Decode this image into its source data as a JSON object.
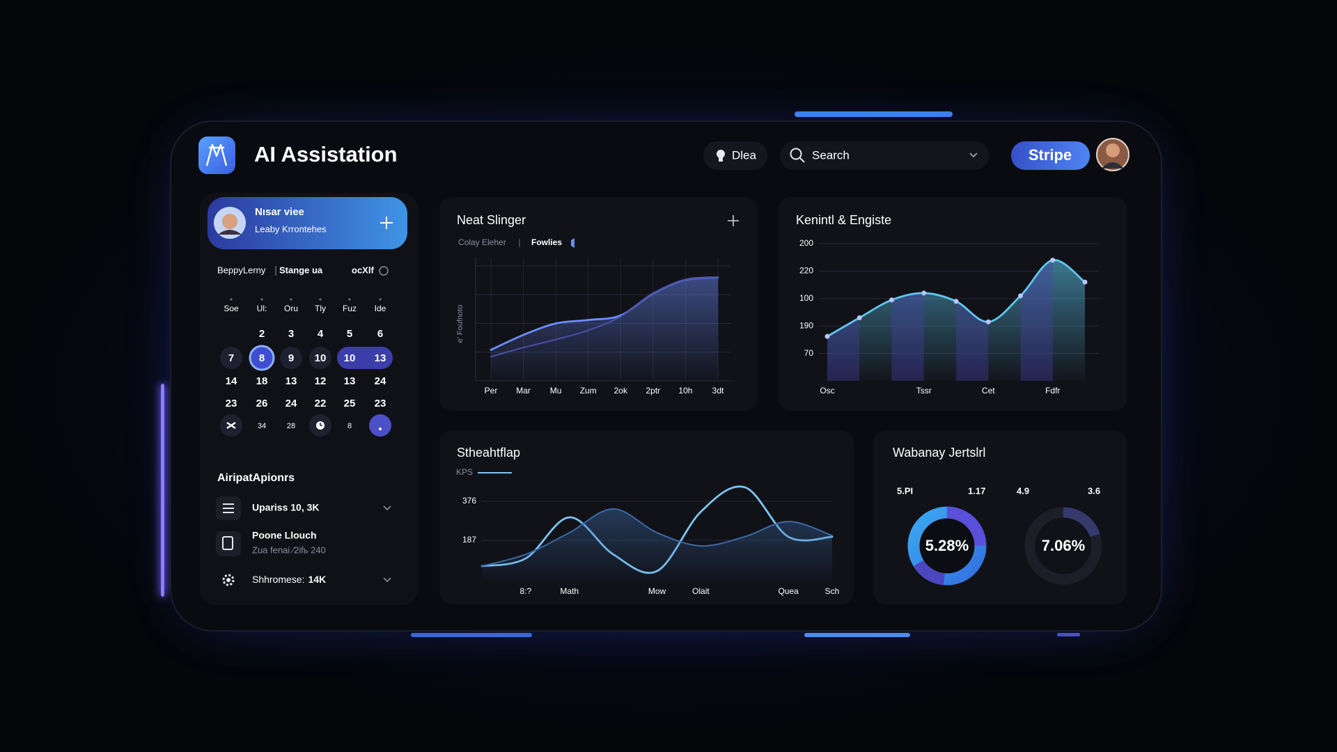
{
  "header": {
    "title": "AI Assistation",
    "chip": "Dlea",
    "search": "Search",
    "button": "Stripe"
  },
  "profile": {
    "name": "Nısar viee",
    "subtitle": "Leaby Krrontehes"
  },
  "calendar": {
    "toolbar": [
      "BeppyLerny",
      "Stange ua",
      "ocXlf"
    ],
    "weekdays": [
      "Soe",
      "Ul:",
      "Oru",
      "Tly",
      "Fuz",
      "Ide"
    ],
    "rows": [
      [
        null,
        2,
        3,
        4,
        5,
        6
      ],
      [
        7,
        8,
        9,
        10,
        10,
        13
      ],
      [
        14,
        18,
        13,
        12,
        13,
        24
      ],
      [
        23,
        26,
        24,
        22,
        25,
        23
      ],
      [
        null,
        34,
        28,
        null,
        8,
        null
      ]
    ]
  },
  "apps": {
    "title": "AiripatApionrs",
    "items": [
      {
        "label": "Upariss 10, 3K"
      },
      {
        "label": "Poone Llouch",
        "sub": "Zua fenai ⁄2ifь 240"
      },
      {
        "label": "Shhromese:",
        "value": "14K"
      }
    ]
  },
  "kpis": {
    "title": "Wabanay Jertslrl",
    "items": [
      {
        "label": "5.PI",
        "delta": "1.17",
        "value": "5.28%"
      },
      {
        "label": "4.9",
        "delta": "3.6",
        "value": "7.06%"
      }
    ]
  },
  "chart_data": [
    {
      "type": "line",
      "title": "Neat Slinger",
      "subtitle": "Colay Eleher",
      "legend": "Fowlies",
      "ylabel": "e' Foufnoto",
      "categories": [
        "Per",
        "Mar",
        "Mu",
        "Zum",
        "2ok",
        "2ptr",
        "10h",
        "3dt"
      ],
      "series": [
        {
          "name": "Fowlies",
          "color": "#6d8dff",
          "fill": true,
          "values": [
            27,
            40,
            50,
            53,
            57,
            76,
            88,
            90
          ]
        },
        {
          "color": "#4a4fa8",
          "values": [
            21,
            29,
            36,
            44,
            56,
            76,
            88,
            90
          ]
        }
      ],
      "ylim": [
        0,
        100
      ],
      "grid": true
    },
    {
      "type": "area",
      "title": "Kenintl & Engiste",
      "categories": [
        "Osc",
        null,
        null,
        "Tssr",
        null,
        "Cet",
        null,
        "Fdfr",
        null
      ],
      "series": [
        {
          "color": "#5fc7f0",
          "values": [
            0.62,
            1.3,
            1.95,
            2.2,
            1.9,
            1.15,
            2.1,
            3.4,
            2.6
          ]
        }
      ],
      "ylim": [
        -1,
        4
      ],
      "yticks": [
        {
          "value": 4,
          "label": "200"
        },
        {
          "value": 3,
          "label": "220"
        },
        {
          "value": 2,
          "label": "100"
        },
        {
          "value": 1,
          "label": "190"
        },
        {
          "value": 0,
          "label": "70"
        }
      ],
      "grid": true
    },
    {
      "type": "line",
      "title": "Stheahtflap",
      "categories": [
        null,
        "8:?",
        "Math",
        null,
        "Mow",
        "Olait",
        null,
        "Quea",
        "Sch"
      ],
      "series": [
        {
          "name": "KPS",
          "color": "#7cc6f5",
          "values": [
            62,
            99,
            298,
            119,
            38,
            325,
            444,
            204,
            204
          ]
        },
        {
          "color": "#3c6aa8",
          "fill": true,
          "values": [
            62,
            119,
            224,
            339,
            224,
            160,
            204,
            278,
            210
          ]
        }
      ],
      "ylim": [
        -12,
        470
      ],
      "yticks": [
        376,
        187
      ],
      "grid": true
    }
  ]
}
